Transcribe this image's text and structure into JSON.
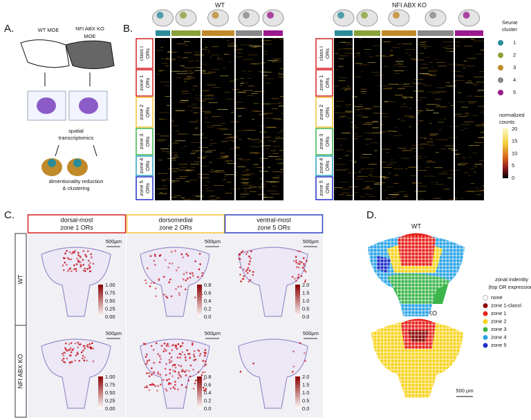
{
  "panelA": {
    "label": "A.",
    "wt": "WT MOE",
    "ko": [
      "NFI ABX KO",
      "MOE"
    ],
    "step1": [
      "spatial",
      "transcriptomics"
    ],
    "step2": [
      "dimentionality reduction",
      "& clustering"
    ]
  },
  "panelB": {
    "label": "B.",
    "titles": [
      "WT",
      "NFI ABX KO"
    ],
    "rows": [
      [
        "class I",
        "ORs"
      ],
      [
        "zone 1",
        "ORs"
      ],
      [
        "zone 2",
        "ORs"
      ],
      [
        "zone 3",
        "ORs"
      ],
      [
        "zone 4",
        "ORs"
      ],
      [
        "zone 5",
        "ORs"
      ]
    ],
    "clusterLegend": {
      "title": [
        "Seurat",
        "cluster"
      ],
      "items": [
        "1",
        "2",
        "3",
        "4",
        "5"
      ]
    },
    "colorbar": {
      "title": [
        "normalized",
        "counts"
      ],
      "ticks": [
        "20",
        "15",
        "10",
        "5",
        "0"
      ]
    }
  },
  "panelC": {
    "label": "C.",
    "columns": [
      [
        "dorsal-most",
        "zone 1 ORs"
      ],
      [
        "dorsomedial",
        "zone 2 ORs"
      ],
      [
        "ventral-most",
        "zone 5 ORs"
      ]
    ],
    "rows": [
      "WT",
      "NFI ABX KO"
    ],
    "scale": "500µm",
    "colorbars": [
      [
        "1.00",
        "0.75",
        "0.50",
        "0.25",
        "0.00"
      ],
      [
        "0.8",
        "0.6",
        "0.4",
        "0.2",
        "0.0"
      ],
      [
        "2.0",
        "1.5",
        "1.0",
        "0.5",
        "0.0"
      ]
    ]
  },
  "panelD": {
    "label": "D.",
    "maps": [
      "WT",
      "NFI ABX KO"
    ],
    "legendTitle": [
      "zonal indentity",
      "(top OR expression)"
    ],
    "legend": [
      "none",
      "zone 1-classI",
      "zone 1",
      "zone 2",
      "zone 3",
      "zone 4",
      "zone 5"
    ],
    "scale": "500 µm"
  }
}
